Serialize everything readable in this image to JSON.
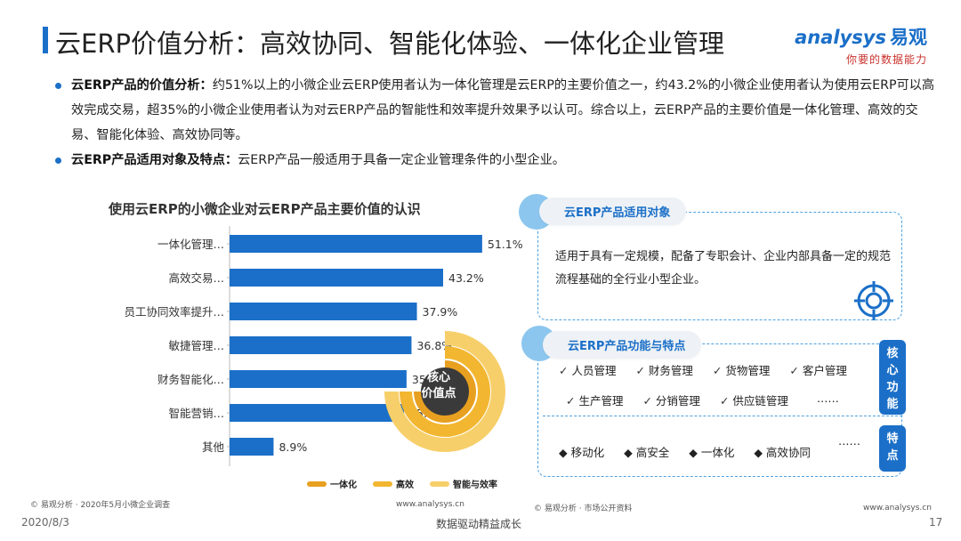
{
  "header": {
    "title": "云ERP价值分析：高效协同、智能化体验、一体化企业管理",
    "logo_main": "nalysys",
    "logo_prefix": "a",
    "logo_cn": "易观",
    "logo_sub": "你要的数据能力"
  },
  "bullets": [
    {
      "bold": "云ERP产品的价值分析：",
      "text": "约51%以上的小微企业云ERP使用者认为一体化管理是云ERP的主要价值之一，约43.2%的小微企业使用者认为使用云ERP可以高效完成交易，超35%的小微企业使用者认为对云ERP产品的智能性和效率提升效果予以认可。综合以上，云ERP产品的主要价值是一体化管理、高效的交易、智能化体验、高效协同等。"
    },
    {
      "bold": "云ERP产品适用对象及特点：",
      "text": "云ERP产品一般适用于具备一定企业管理条件的小型企业。"
    }
  ],
  "chart_data": {
    "type": "bar",
    "orientation": "horizontal",
    "title": "使用云ERP的小微企业对云ERP产品主要价值的认识",
    "categories": [
      "一体化管理…",
      "高效交易…",
      "员工协同效率提升…",
      "敏捷管理…",
      "财务智能化…",
      "智能营销…",
      "其他"
    ],
    "values": [
      51.1,
      43.2,
      37.9,
      36.8,
      35.8,
      35.3,
      8.9
    ],
    "value_labels": [
      "51.1%",
      "43.2%",
      "37.9%",
      "36.8%",
      "35.8%",
      "35.3%",
      "8.9%"
    ],
    "xlim": [
      0,
      60
    ],
    "bar_color": "#1b6fc8",
    "grid": false,
    "legend_placement": "bottom",
    "source": "© 易观分析 · 2020年5月小微企业调查",
    "site": "www.analysys.cn"
  },
  "core_value": {
    "label_line1": "核心",
    "label_line2": "价值点",
    "legend": [
      {
        "label": "一体化",
        "color": "#e8a020"
      },
      {
        "label": "高效",
        "color": "#f2b630"
      },
      {
        "label": "智能与效率",
        "color": "#f7cf6a"
      }
    ]
  },
  "suitable": {
    "pill": "云ERP产品适用对象",
    "text": "适用于具有一定规模，配备了专职会计、企业内部具备一定的规范流程基础的全行业小型企业。",
    "icon": "target-icon"
  },
  "features": {
    "pill": "云ERP产品功能与特点",
    "core_tag": "核心功能",
    "feature_tag": "特点",
    "functions_row1": [
      "人员管理",
      "财务管理",
      "货物管理",
      "客户管理"
    ],
    "functions_row2": [
      "生产管理",
      "分销管理",
      "供应链管理"
    ],
    "functions_more": "……",
    "traits": [
      "移动化",
      "高安全",
      "一体化",
      "高效协同"
    ],
    "traits_more": "……",
    "source": "© 易观分析 · 市场公开资料",
    "site": "www.analysys.cn"
  },
  "footer": {
    "date": "2020/8/3",
    "center": "数据驱动精益成长",
    "page": "17"
  },
  "colors": {
    "accent": "#1b6fc8",
    "dash": "#4da0e0",
    "gold": "#f2b630"
  }
}
